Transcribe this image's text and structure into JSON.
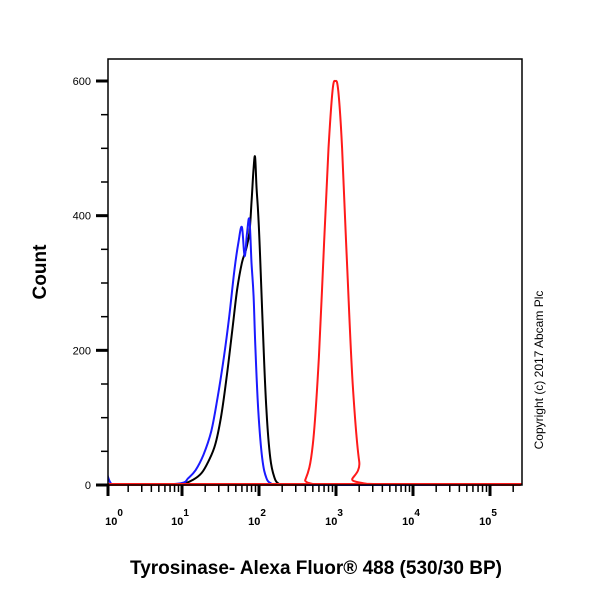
{
  "chart_data": {
    "type": "line",
    "title": "",
    "xlabel": "Tyrosinase- Alexa Fluor® 488 (530/30 BP)",
    "ylabel": "Count",
    "xscale": "log",
    "xlim": [
      0.95,
      250000
    ],
    "ylim": [
      0,
      630
    ],
    "y_ticks": [
      0,
      200,
      400,
      600
    ],
    "y_tick_labels": [
      "0",
      "200",
      "400",
      "600"
    ],
    "x_ticks": [
      1,
      10,
      100,
      1000,
      10000,
      100000
    ],
    "x_tick_labels": [
      {
        "base": "10",
        "exp": "0"
      },
      {
        "base": "10",
        "exp": "1"
      },
      {
        "base": "10",
        "exp": "2"
      },
      {
        "base": "10",
        "exp": "3"
      },
      {
        "base": "10",
        "exp": "4"
      },
      {
        "base": "10",
        "exp": "5"
      }
    ],
    "grid": false,
    "legend": null,
    "annotation": "Copyright (c) 2017 Abcam Plc",
    "series": [
      {
        "name": "black",
        "color": "#000000",
        "x": [
          1,
          5,
          10,
          14,
          18,
          22,
          27,
          32,
          38,
          45,
          52,
          60,
          68,
          75,
          80,
          85,
          89,
          93,
          98,
          105,
          115,
          125,
          140,
          160,
          180,
          200,
          250000
        ],
        "y": [
          0,
          0,
          2,
          8,
          18,
          35,
          60,
          100,
          160,
          230,
          290,
          330,
          350,
          375,
          420,
          470,
          487,
          440,
          400,
          320,
          200,
          110,
          40,
          10,
          2,
          0,
          0
        ]
      },
      {
        "name": "blue",
        "color": "#1a1aff",
        "x": [
          1,
          1.05,
          1.2,
          1.5,
          5,
          10,
          12,
          15,
          19,
          24,
          29,
          35,
          41,
          48,
          54,
          60,
          65,
          70,
          75,
          80,
          85,
          90,
          98,
          110,
          125,
          145,
          165,
          180,
          250000
        ],
        "y": [
          45,
          20,
          2,
          0,
          0,
          3,
          10,
          22,
          45,
          80,
          130,
          190,
          250,
          320,
          360,
          383,
          340,
          375,
          394,
          330,
          280,
          200,
          110,
          40,
          10,
          2,
          0,
          0,
          0
        ]
      },
      {
        "name": "red",
        "color": "#ff1a1a",
        "x": [
          1,
          300,
          400,
          500,
          600,
          700,
          800,
          900,
          980,
          1070,
          1200,
          1400,
          1650,
          2000,
          2500,
          250000
        ],
        "y": [
          0,
          0,
          8,
          60,
          190,
          360,
          500,
          585,
          600,
          585,
          500,
          320,
          150,
          35,
          2,
          0
        ]
      }
    ]
  },
  "axes": {
    "y_title": "Count",
    "x_title": "Tyrosinase- Alexa Fluor® 488 (530/30 BP)",
    "copyright": "Copyright (c) 2017 Abcam Plc"
  }
}
